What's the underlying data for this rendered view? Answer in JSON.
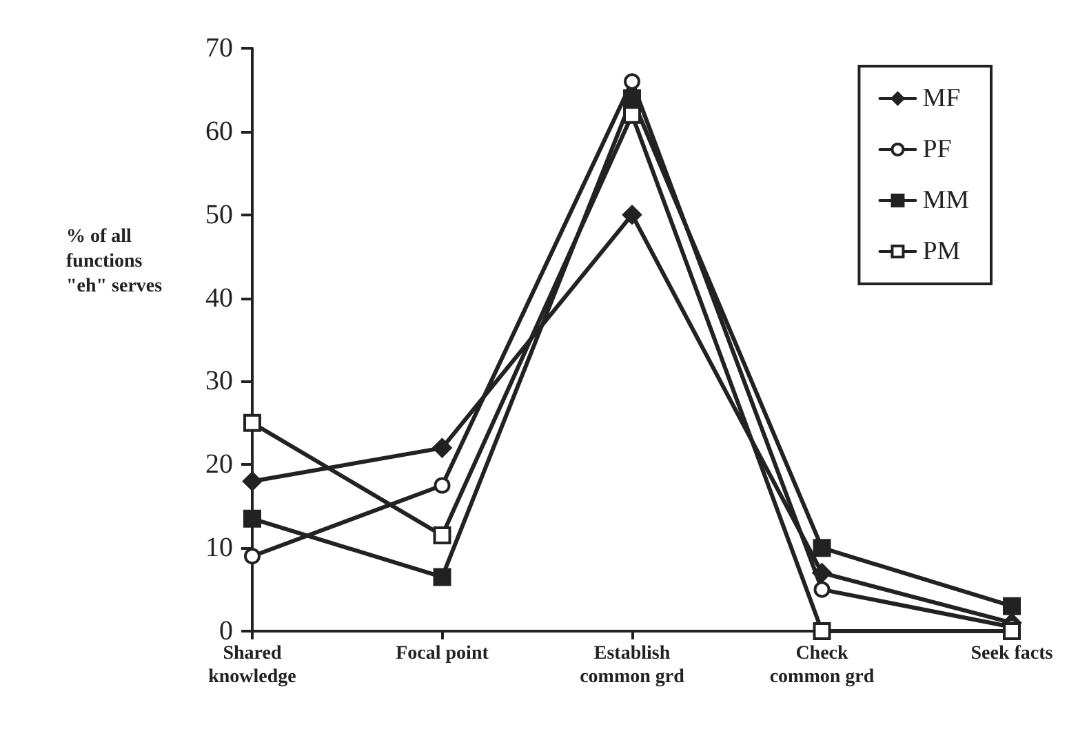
{
  "chart_data": {
    "type": "line",
    "ylabel": "% of all\nfunctions\n\"eh\" serves",
    "categories": [
      "Shared\nknowledge",
      "Focal point",
      "Establish\ncommon grd",
      "Check\ncommon grd",
      "Seek facts"
    ],
    "series": [
      {
        "name": "MF",
        "color": "#222222",
        "marker": "diamond",
        "values": [
          18,
          22,
          50,
          7,
          1
        ]
      },
      {
        "name": "PF",
        "color": "#222222",
        "marker": "circle",
        "values": [
          9,
          17.5,
          66,
          5,
          0.5
        ]
      },
      {
        "name": "MM",
        "color": "#222222",
        "marker": "square",
        "values": [
          13.5,
          6.5,
          64,
          10,
          3
        ]
      },
      {
        "name": "PM",
        "color": "#222222",
        "marker": "square",
        "values": [
          25,
          11.5,
          62,
          0,
          0
        ]
      }
    ],
    "ylim": [
      0,
      70
    ],
    "yticks": [
      0,
      10,
      20,
      30,
      40,
      50,
      60,
      70
    ],
    "grid": false,
    "legend": "top right",
    "line_style": "solid"
  }
}
